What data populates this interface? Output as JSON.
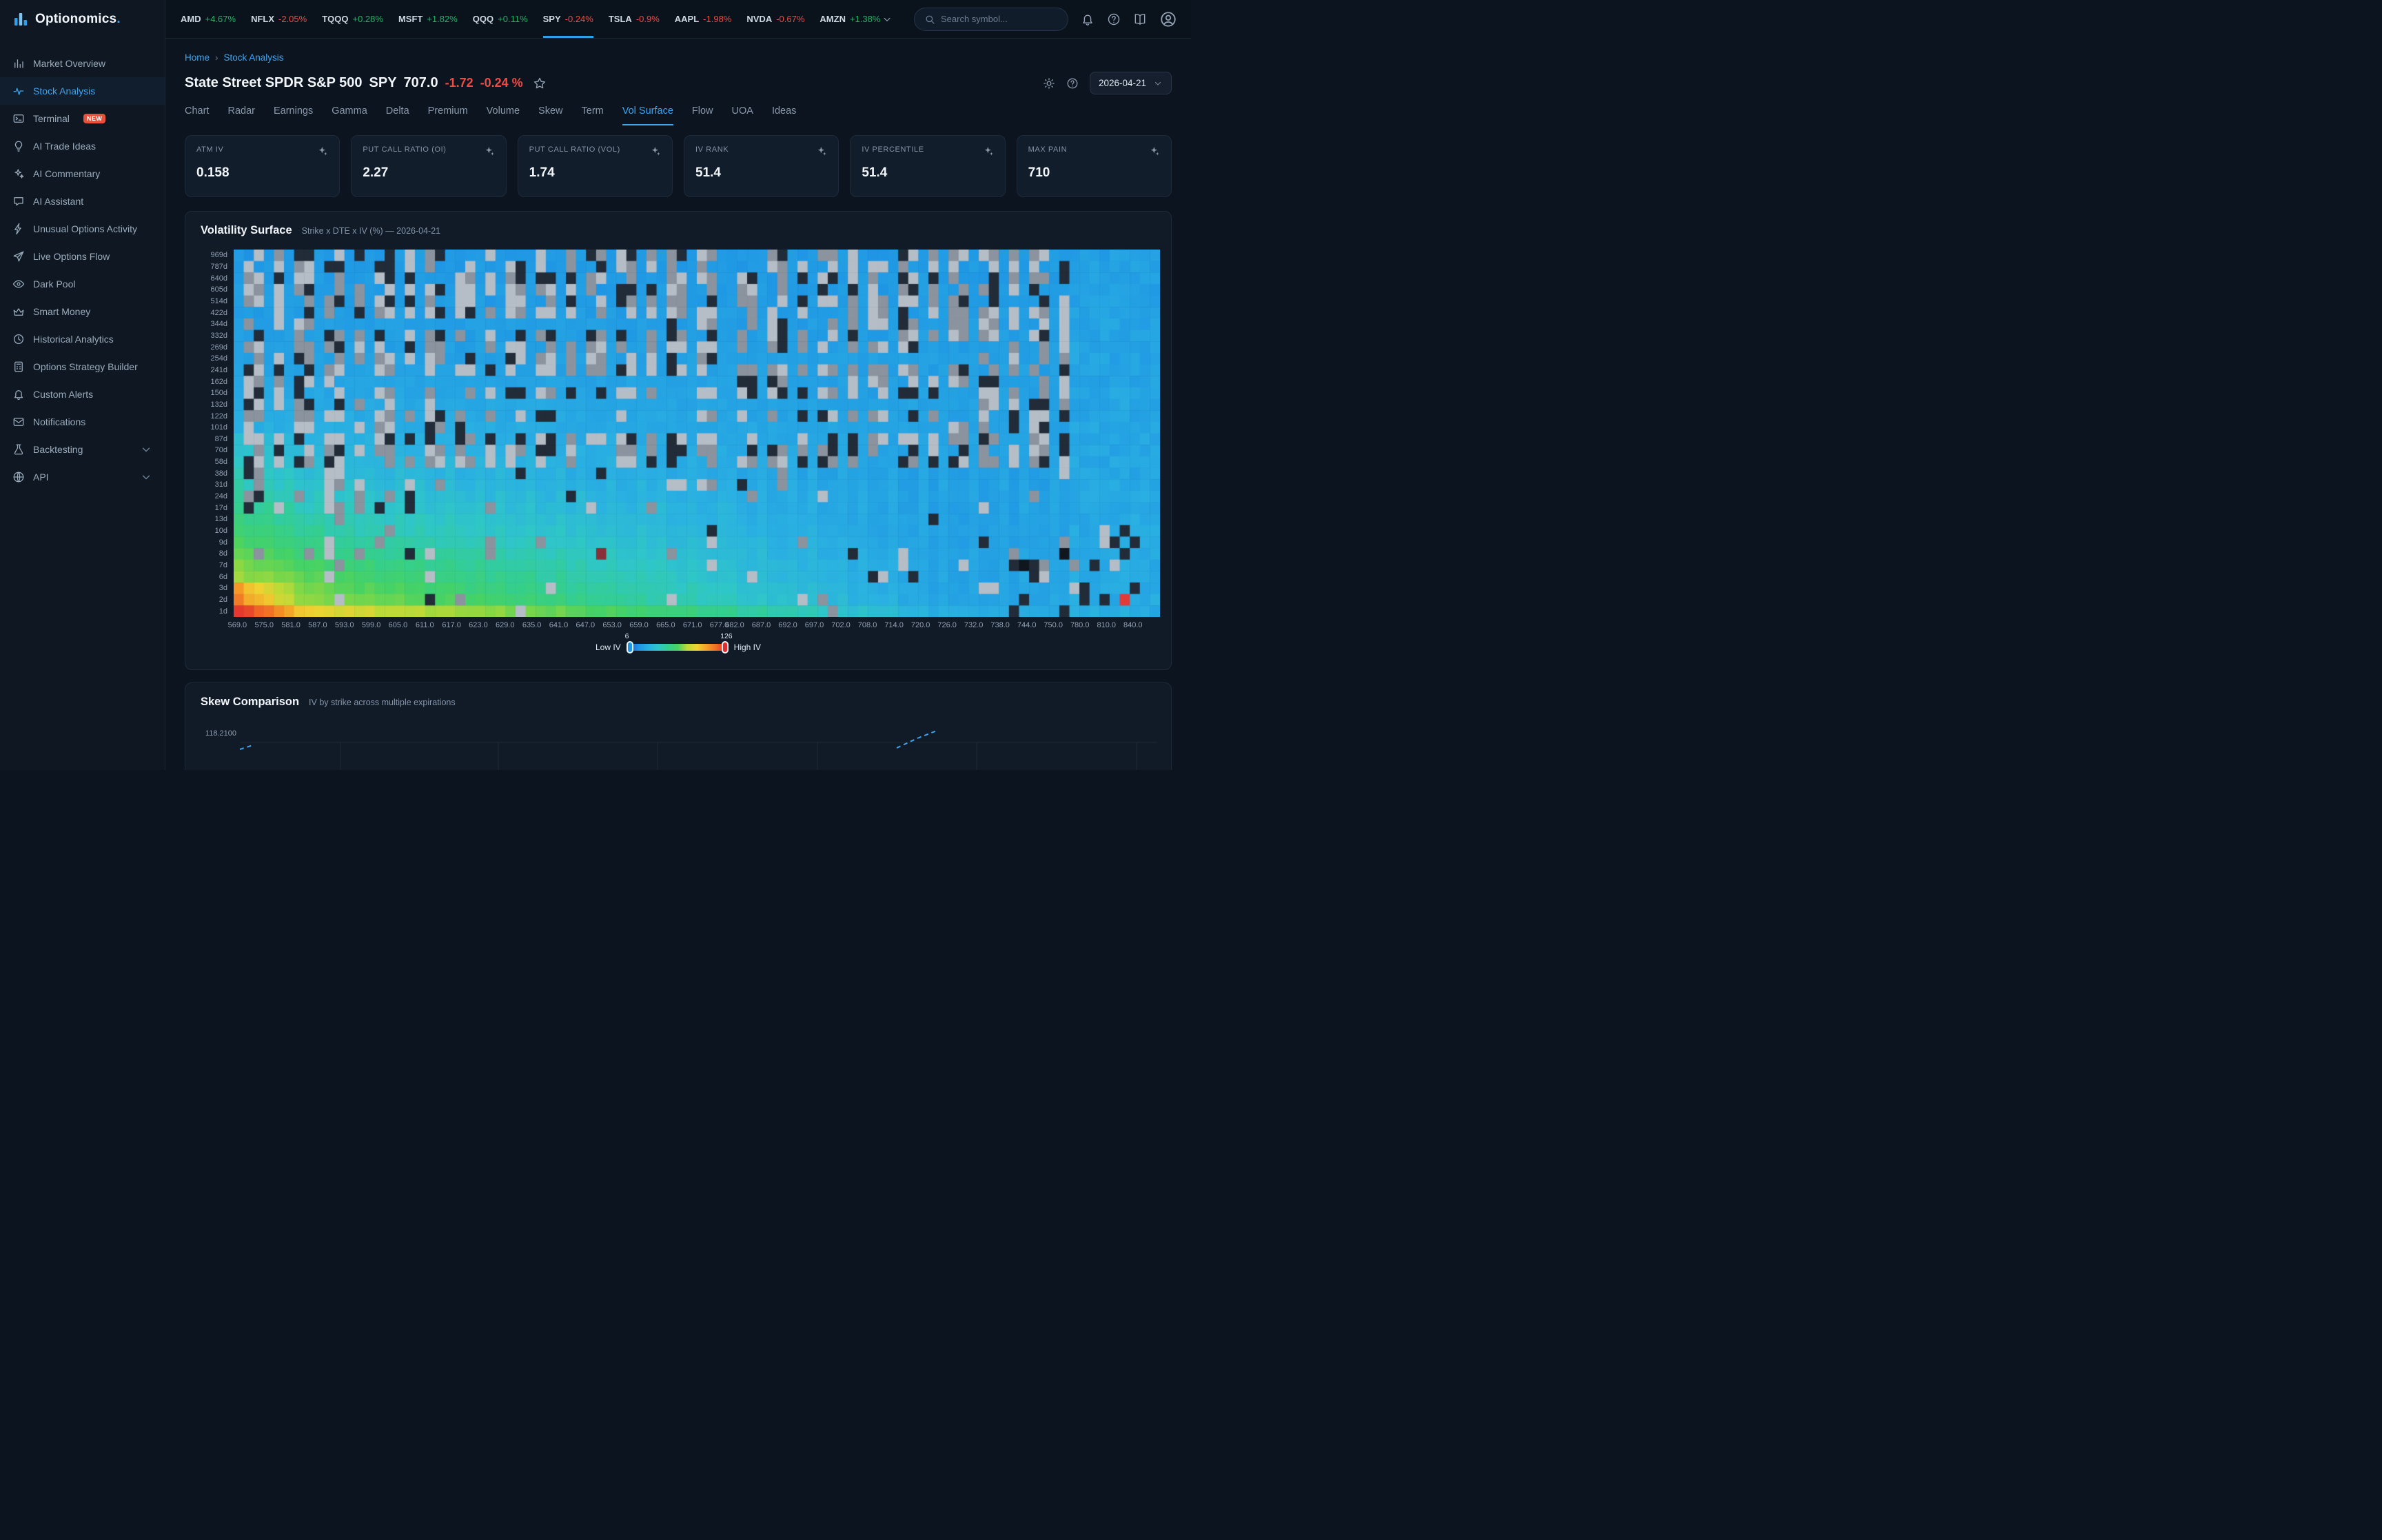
{
  "app": {
    "name": "Optionomics",
    "suffix": "."
  },
  "colors": {
    "accent": "#2f9fe8",
    "positive": "#22b365",
    "negative": "#f04a45",
    "background": "#0c141f",
    "card": "#121d2b",
    "border": "#1e2a3a"
  },
  "topbar": {
    "search_placeholder": "Search symbol...",
    "tickers": [
      {
        "symbol": "AMD",
        "change": "+4.67%",
        "dir": "up"
      },
      {
        "symbol": "NFLX",
        "change": "-2.05%",
        "dir": "down"
      },
      {
        "symbol": "TQQQ",
        "change": "+0.28%",
        "dir": "up"
      },
      {
        "symbol": "MSFT",
        "change": "+1.82%",
        "dir": "up"
      },
      {
        "symbol": "QQQ",
        "change": "+0.11%",
        "dir": "up"
      },
      {
        "symbol": "SPY",
        "change": "-0.24%",
        "dir": "down",
        "active": true
      },
      {
        "symbol": "TSLA",
        "change": "-0.9%",
        "dir": "down"
      },
      {
        "symbol": "AAPL",
        "change": "-1.98%",
        "dir": "down"
      },
      {
        "symbol": "NVDA",
        "change": "-0.67%",
        "dir": "down"
      },
      {
        "symbol": "AMZN",
        "change": "+1.38%",
        "dir": "up"
      }
    ]
  },
  "sidebar": {
    "items": [
      {
        "label": "Market Overview",
        "icon": "bar-chart"
      },
      {
        "label": "Stock Analysis",
        "icon": "pulse",
        "active": true
      },
      {
        "label": "Terminal",
        "icon": "terminal",
        "badge": "NEW"
      },
      {
        "label": "AI Trade Ideas",
        "icon": "bulb"
      },
      {
        "label": "AI Commentary",
        "icon": "sparkles"
      },
      {
        "label": "AI Assistant",
        "icon": "chat"
      },
      {
        "label": "Unusual Options Activity",
        "icon": "lightning"
      },
      {
        "label": "Live Options Flow",
        "icon": "plane"
      },
      {
        "label": "Dark Pool",
        "icon": "eye"
      },
      {
        "label": "Smart Money",
        "icon": "crown"
      },
      {
        "label": "Historical Analytics",
        "icon": "history"
      },
      {
        "label": "Options Strategy Builder",
        "icon": "calculator"
      },
      {
        "label": "Custom Alerts",
        "icon": "bell"
      },
      {
        "label": "Notifications",
        "icon": "envelope"
      },
      {
        "label": "Backtesting",
        "icon": "flask",
        "chevron": true
      },
      {
        "label": "API",
        "icon": "globe",
        "chevron": true
      }
    ]
  },
  "page": {
    "breadcrumb": {
      "home": "Home",
      "separator": "›",
      "current": "Stock Analysis"
    },
    "header": {
      "company": "State Street SPDR S&P 500",
      "symbol": "SPY",
      "price": "707.0",
      "change": "-1.72",
      "change_pct": "-0.24 %",
      "date": "2026-04-21"
    },
    "tabs": [
      "Chart",
      "Radar",
      "Earnings",
      "Gamma",
      "Delta",
      "Premium",
      "Volume",
      "Skew",
      "Term",
      "Vol Surface",
      "Flow",
      "UOA",
      "Ideas"
    ],
    "active_tab": "Vol Surface"
  },
  "stats": [
    {
      "label": "ATM IV",
      "value": "0.158"
    },
    {
      "label": "PUT CALL RATIO (OI)",
      "value": "2.27"
    },
    {
      "label": "PUT CALL RATIO (VOL)",
      "value": "1.74"
    },
    {
      "label": "IV RANK",
      "value": "51.4"
    },
    {
      "label": "IV PERCENTILE",
      "value": "51.4"
    },
    {
      "label": "MAX PAIN",
      "value": "710"
    }
  ],
  "vol_surface": {
    "title": "Volatility Surface",
    "subtitle": "Strike x DTE x IV (%) — 2026-04-21",
    "legend": {
      "low": "Low IV",
      "high": "High IV",
      "min": "6",
      "max": "126"
    }
  },
  "skew": {
    "title": "Skew Comparison",
    "subtitle": "IV by strike across multiple expirations",
    "ytick": "118.2100"
  },
  "chart_data": [
    {
      "type": "heatmap",
      "title": "Volatility Surface",
      "subtitle": "Strike x DTE x IV (%) — 2026-04-21",
      "x_label": "Strike",
      "y_label": "Days to expiration",
      "rows_dte": [
        "969d",
        "787d",
        "640d",
        "605d",
        "514d",
        "422d",
        "344d",
        "332d",
        "269d",
        "254d",
        "241d",
        "162d",
        "150d",
        "132d",
        "122d",
        "101d",
        "87d",
        "70d",
        "58d",
        "38d",
        "31d",
        "24d",
        "17d",
        "13d",
        "10d",
        "9d",
        "8d",
        "7d",
        "6d",
        "3d",
        "2d",
        "1d"
      ],
      "col_ticks": [
        "569.0",
        "575.0",
        "581.0",
        "587.0",
        "593.0",
        "599.0",
        "605.0",
        "611.0",
        "617.0",
        "623.0",
        "629.0",
        "635.0",
        "641.0",
        "647.0",
        "653.0",
        "659.0",
        "665.0",
        "671.0",
        "677.0",
        "682.0",
        "687.0",
        "692.0",
        "697.0",
        "702.0",
        "708.0",
        "714.0",
        "720.0",
        "726.0",
        "732.0",
        "738.0",
        "744.0",
        "750.0",
        "780.0",
        "810.0",
        "840.0"
      ],
      "value_range": [
        6,
        126
      ],
      "legend": {
        "low": "Low IV",
        "high": "High IV"
      },
      "colorscale": [
        "#1a5ed6",
        "#1f96e4",
        "#2ab0e2",
        "#2fc6c8",
        "#34ce90",
        "#46d264",
        "#82d746",
        "#beda37",
        "#f0d232",
        "#f5a028",
        "#f06e26",
        "#e8462a",
        "#e12d30"
      ],
      "missing_cell_colors": [
        "#b5bdc6",
        "#8a939e",
        "#222c39"
      ]
    },
    {
      "type": "line",
      "title": "Skew Comparison",
      "subtitle": "IV by strike across multiple expirations",
      "visible_y_tick": "118.2100",
      "series_color": "#3da5f0",
      "line_style": "dashed"
    }
  ]
}
